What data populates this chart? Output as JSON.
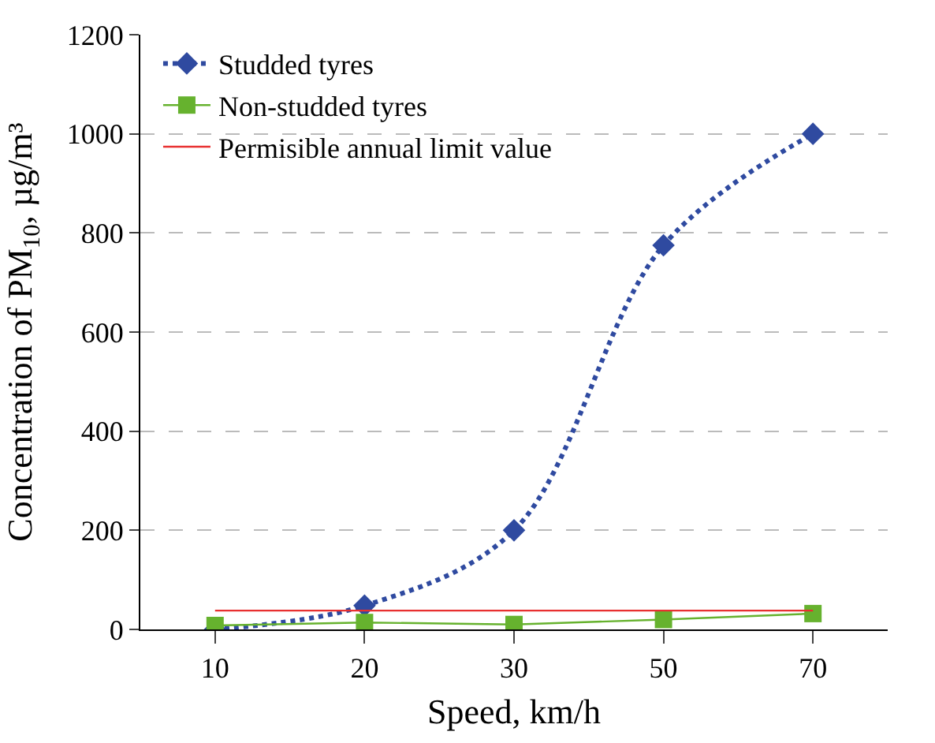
{
  "chart_data": {
    "type": "line",
    "xlabel": "Speed, km/h",
    "ylabel": "Concentration of PM$_{10}$, µg/m³",
    "categories": [
      "10",
      "20",
      "30",
      "50",
      "70"
    ],
    "ylim": [
      0,
      1200
    ],
    "yticks": [
      0,
      200,
      400,
      600,
      800,
      1000,
      1200
    ],
    "grid": "y",
    "legend": "top left",
    "series": [
      {
        "name": "Studded tyres",
        "color": "#2f4aa0",
        "values": [
          0,
          48,
          200,
          775,
          1000
        ],
        "marker": "diamond",
        "line_style": "dotted"
      },
      {
        "name": "Non-studded tyres",
        "color": "#66b22e",
        "values": [
          8,
          14,
          10,
          20,
          32
        ],
        "marker": "square",
        "line_style": "solid"
      },
      {
        "name": "Permisible annual limit value",
        "color": "#e83030",
        "values": [
          38,
          38,
          38,
          38,
          38
        ],
        "marker": "none",
        "line_style": "solid"
      }
    ]
  }
}
